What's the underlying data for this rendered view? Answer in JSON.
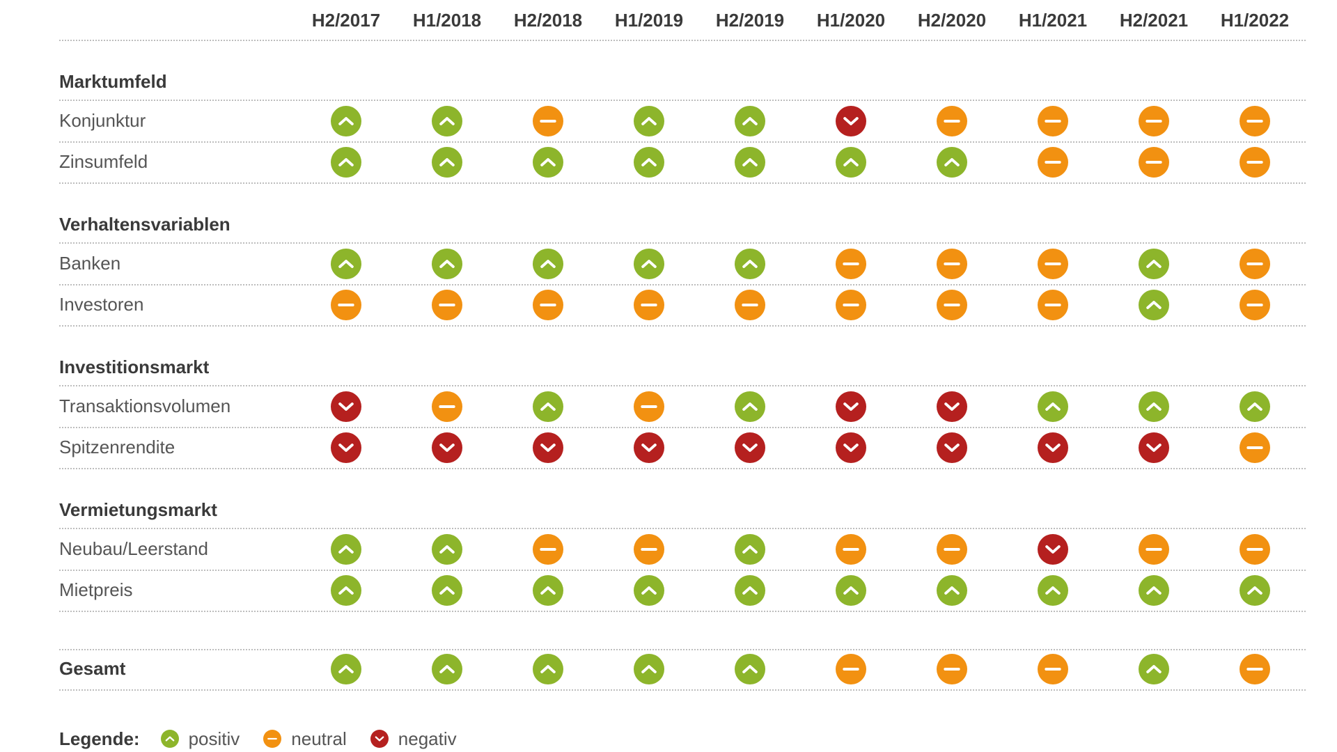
{
  "chart_data": {
    "type": "table",
    "columns": [
      "H2/2017",
      "H1/2018",
      "H2/2018",
      "H1/2019",
      "H2/2019",
      "H1/2020",
      "H2/2020",
      "H1/2021",
      "H2/2021",
      "H1/2022"
    ],
    "sections": [
      {
        "title": "Marktumfeld",
        "rows": [
          {
            "label": "Konjunktur",
            "values": [
              "positiv",
              "positiv",
              "neutral",
              "positiv",
              "positiv",
              "negativ",
              "neutral",
              "neutral",
              "neutral",
              "neutral"
            ]
          },
          {
            "label": "Zinsumfeld",
            "values": [
              "positiv",
              "positiv",
              "positiv",
              "positiv",
              "positiv",
              "positiv",
              "positiv",
              "neutral",
              "neutral",
              "neutral"
            ]
          }
        ]
      },
      {
        "title": "Verhaltensvariablen",
        "rows": [
          {
            "label": "Banken",
            "values": [
              "positiv",
              "positiv",
              "positiv",
              "positiv",
              "positiv",
              "neutral",
              "neutral",
              "neutral",
              "positiv",
              "neutral"
            ]
          },
          {
            "label": "Investoren",
            "values": [
              "neutral",
              "neutral",
              "neutral",
              "neutral",
              "neutral",
              "neutral",
              "neutral",
              "neutral",
              "positiv",
              "neutral"
            ]
          }
        ]
      },
      {
        "title": "Investitionsmarkt",
        "rows": [
          {
            "label": "Transaktionsvolumen",
            "values": [
              "negativ",
              "neutral",
              "positiv",
              "neutral",
              "positiv",
              "negativ",
              "negativ",
              "positiv",
              "positiv",
              "positiv"
            ]
          },
          {
            "label": "Spitzenrendite",
            "values": [
              "negativ",
              "negativ",
              "negativ",
              "negativ",
              "negativ",
              "negativ",
              "negativ",
              "negativ",
              "negativ",
              "neutral"
            ]
          }
        ]
      },
      {
        "title": "Vermietungsmarkt",
        "rows": [
          {
            "label": "Neubau/Leerstand",
            "values": [
              "positiv",
              "positiv",
              "neutral",
              "neutral",
              "positiv",
              "neutral",
              "neutral",
              "negativ",
              "neutral",
              "neutral"
            ]
          },
          {
            "label": "Mietpreis",
            "values": [
              "positiv",
              "positiv",
              "positiv",
              "positiv",
              "positiv",
              "positiv",
              "positiv",
              "positiv",
              "positiv",
              "positiv"
            ]
          }
        ]
      }
    ],
    "total": {
      "label": "Gesamt",
      "values": [
        "positiv",
        "positiv",
        "positiv",
        "positiv",
        "positiv",
        "neutral",
        "neutral",
        "neutral",
        "positiv",
        "neutral"
      ]
    },
    "legend": {
      "title": "Legende:",
      "items": [
        {
          "key": "positiv",
          "label": "positiv",
          "icon": "chevron-up-icon"
        },
        {
          "key": "neutral",
          "label": "neutral",
          "icon": "minus-icon"
        },
        {
          "key": "negativ",
          "label": "negativ",
          "icon": "chevron-down-icon"
        }
      ]
    },
    "colors": {
      "positiv": "#8db52b",
      "neutral": "#f29111",
      "negativ": "#b5201f"
    }
  }
}
